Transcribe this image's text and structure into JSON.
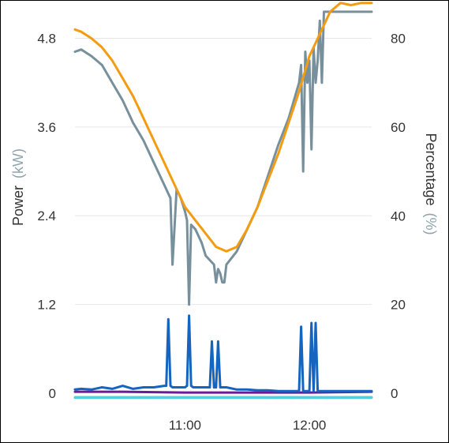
{
  "chart_data": {
    "type": "line",
    "xlabel": "",
    "x_ticks": [
      "11:00",
      "12:00"
    ],
    "y_left": {
      "label": "Power",
      "unit": "(kW)",
      "ticks": [
        0,
        1.2,
        2.4,
        3.6,
        4.8
      ],
      "range": [
        0,
        5.2
      ]
    },
    "y_right": {
      "label": "Percentage",
      "unit": "(%)",
      "ticks": [
        0,
        20,
        40,
        60,
        80
      ],
      "range": [
        0,
        86.7
      ]
    },
    "x_range": [
      "10:07",
      "12:30"
    ],
    "grid": true,
    "legend": "none",
    "series": [
      {
        "color": "#f39c12",
        "axis": "right",
        "x": [
          "10:07",
          "10:10",
          "10:15",
          "10:20",
          "10:25",
          "10:30",
          "10:35",
          "10:40",
          "10:45",
          "10:50",
          "10:55",
          "11:00",
          "11:05",
          "11:10",
          "11:15",
          "11:20",
          "11:25",
          "11:30",
          "11:35",
          "11:40",
          "11:45",
          "11:50",
          "11:55",
          "12:00",
          "12:05",
          "12:10",
          "12:15",
          "12:20",
          "12:25",
          "12:30"
        ],
        "values": [
          82,
          81.5,
          80,
          78,
          75,
          71,
          67,
          62,
          57,
          52,
          47,
          42,
          39,
          36,
          33,
          32,
          33,
          37,
          42,
          48,
          54,
          61,
          68,
          76,
          81,
          86,
          88,
          87.5,
          88,
          88
        ]
      },
      {
        "color": "#78909c",
        "axis": "right",
        "x": [
          "10:07",
          "10:10",
          "10:15",
          "10:20",
          "10:25",
          "10:30",
          "10:35",
          "10:40",
          "10:45",
          "10:50",
          "10:52",
          "10:53",
          "10:54",
          "10:56",
          "10:58",
          "11:00",
          "11:01",
          "11:02",
          "11:03",
          "11:05",
          "11:08",
          "11:10",
          "11:14",
          "11:15",
          "11:16",
          "11:17",
          "11:18",
          "11:19",
          "11:20",
          "11:25",
          "11:30",
          "11:35",
          "11:40",
          "11:45",
          "11:50",
          "11:55",
          "11:56",
          "11:57",
          "11:58",
          "11:59",
          "12:00",
          "12:01",
          "12:02",
          "12:03",
          "12:04",
          "12:05",
          "12:06",
          "12:07",
          "12:10",
          "12:15",
          "12:20",
          "12:25",
          "12:30"
        ],
        "values": [
          77,
          77.5,
          76,
          74,
          70,
          66,
          61,
          57,
          52,
          47,
          45,
          44,
          29,
          46,
          44,
          41,
          39,
          20,
          38,
          37,
          34,
          31,
          29,
          25,
          28,
          27,
          25,
          25,
          29,
          32,
          37,
          42,
          49,
          56,
          62,
          70,
          74,
          50,
          77,
          70,
          75,
          55,
          78,
          70,
          75,
          84,
          70,
          86,
          86,
          86,
          86,
          86,
          86
        ]
      },
      {
        "color": "#1565c0",
        "axis": "left",
        "x": [
          "10:07",
          "10:10",
          "10:15",
          "10:20",
          "10:25",
          "10:30",
          "10:35",
          "10:40",
          "10:45",
          "10:50",
          "10:51",
          "10:52",
          "10:53",
          "10:54",
          "10:55",
          "11:00",
          "11:01",
          "11:02",
          "11:03",
          "11:04",
          "11:05",
          "11:10",
          "11:12",
          "11:13",
          "11:14",
          "11:15",
          "11:16",
          "11:17",
          "11:18",
          "11:20",
          "11:25",
          "11:30",
          "11:35",
          "11:40",
          "11:45",
          "11:50",
          "11:55",
          "11:56",
          "11:57",
          "11:58",
          "11:59",
          "12:00",
          "12:01",
          "12:02",
          "12:03",
          "12:04",
          "12:05",
          "12:06",
          "12:07",
          "12:10",
          "12:20",
          "12:30"
        ],
        "values": [
          0.05,
          0.06,
          0.05,
          0.08,
          0.06,
          0.1,
          0.06,
          0.08,
          0.08,
          0.1,
          0.1,
          1.0,
          0.1,
          0.08,
          0.08,
          0.08,
          0.1,
          1.05,
          0.1,
          0.08,
          0.08,
          0.08,
          0.08,
          0.7,
          0.08,
          0.08,
          0.7,
          0.08,
          0.08,
          0.08,
          0.05,
          0.05,
          0.04,
          0.04,
          0.03,
          0.03,
          0.03,
          0.9,
          0.03,
          0.03,
          0.03,
          0.03,
          0.95,
          0.03,
          0.95,
          0.03,
          0.03,
          0.03,
          0.03,
          0.03,
          0.03,
          0.03
        ]
      },
      {
        "color": "#6a1b9a",
        "axis": "left",
        "x": [
          "10:07",
          "10:30",
          "11:00",
          "11:30",
          "12:00",
          "12:30"
        ],
        "values": [
          0.02,
          0.02,
          0.01,
          0.01,
          0.01,
          0.02
        ]
      },
      {
        "color": "#4dd0e1",
        "axis": "left",
        "x": [
          "10:07",
          "12:30"
        ],
        "values": [
          -0.06,
          -0.06
        ]
      },
      {
        "color": "#a5d6a7",
        "axis": "left",
        "x": [
          "10:07",
          "12:30"
        ],
        "values": [
          -0.05,
          -0.05
        ]
      }
    ]
  }
}
